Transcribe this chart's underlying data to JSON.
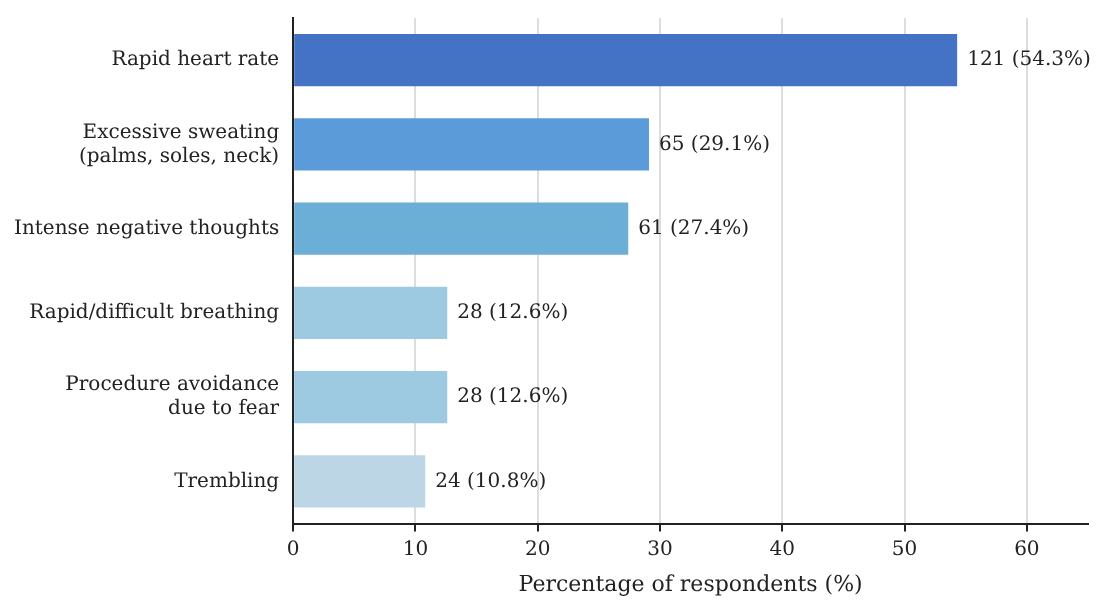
{
  "chart_data": {
    "type": "bar",
    "orientation": "horizontal",
    "xlabel": "Percentage of respondents (%)",
    "categories": [
      "Rapid heart rate",
      "Excessive sweating\n(palms, soles, neck)",
      "Intense negative thoughts",
      "Rapid/difficult breathing",
      "Procedure avoidance\ndue to fear",
      "Trembling"
    ],
    "values": [
      54.3,
      29.1,
      27.4,
      12.6,
      12.6,
      10.8
    ],
    "colors": [
      "#4472c4",
      "#5b9bd9",
      "#6baed6",
      "#9ecae1",
      "#9ecae1",
      "#bcd6e6"
    ],
    "value_labels": [
      "121 (54.3%)",
      "65 (29.1%)",
      "61 (27.4%)",
      "28 (12.6%)",
      "28 (12.6%)",
      "24 (10.8%)"
    ],
    "xlim": [
      0,
      65
    ],
    "xticks": [
      0,
      10,
      20,
      30,
      40,
      50,
      60
    ],
    "grid": "x",
    "legend": false
  }
}
